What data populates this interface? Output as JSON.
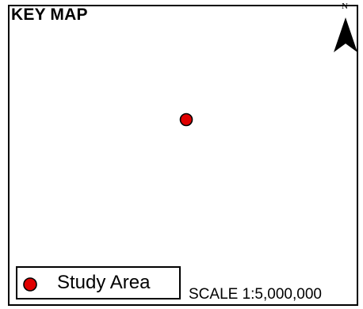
{
  "map": {
    "title": "KEY MAP",
    "north_label": "N",
    "scale_text": "SCALE 1:5,000,000",
    "study_point": {
      "icon": "study-area-point-icon"
    }
  },
  "legend": {
    "items": [
      {
        "label": "Study Area",
        "icon": "study-area-point-icon",
        "color": "#e00000"
      }
    ]
  },
  "colors": {
    "study_area_fill": "#e00000",
    "outline": "#000000",
    "background": "#ffffff"
  }
}
